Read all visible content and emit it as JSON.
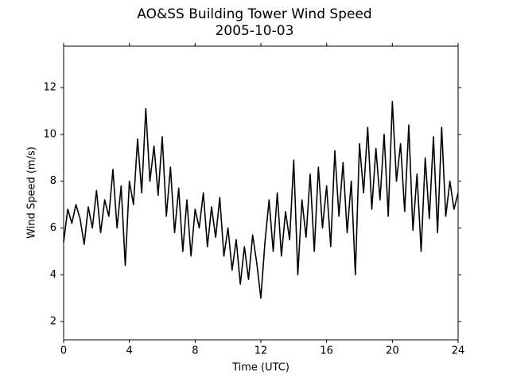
{
  "chart_data": {
    "type": "line",
    "title": "AO&SS Building Tower Wind Speed",
    "subtitle": "2005-10-03",
    "xlabel": "Time (UTC)",
    "ylabel": "Wind Speed (m/s)",
    "xlim": [
      0,
      24
    ],
    "xticks": [
      0,
      4,
      8,
      12,
      16,
      20,
      24
    ],
    "ylim": [
      1.22,
      13.77
    ],
    "yticks": [
      2,
      4,
      6,
      8,
      10,
      12
    ],
    "grid": false,
    "x": [
      0,
      0.25,
      0.5,
      0.75,
      1,
      1.25,
      1.5,
      1.75,
      2,
      2.25,
      2.5,
      2.75,
      3,
      3.25,
      3.5,
      3.75,
      4,
      4.25,
      4.5,
      4.75,
      5,
      5.25,
      5.5,
      5.75,
      6,
      6.25,
      6.5,
      6.75,
      7,
      7.25,
      7.5,
      7.75,
      8,
      8.25,
      8.5,
      8.75,
      9,
      9.25,
      9.5,
      9.75,
      10,
      10.25,
      10.5,
      10.75,
      11,
      11.25,
      11.5,
      11.75,
      12,
      12.25,
      12.5,
      12.75,
      13,
      13.25,
      13.5,
      13.75,
      14,
      14.25,
      14.5,
      14.75,
      15,
      15.25,
      15.5,
      15.75,
      16,
      16.25,
      16.5,
      16.75,
      17,
      17.25,
      17.5,
      17.75,
      18,
      18.25,
      18.5,
      18.75,
      19,
      19.25,
      19.5,
      19.75,
      20,
      20.25,
      20.5,
      20.75,
      21,
      21.25,
      21.5,
      21.75,
      22,
      22.25,
      22.5,
      22.75,
      23,
      23.25,
      23.5,
      23.75,
      24
    ],
    "series": [
      {
        "name": "Wind Speed",
        "color": "#000000",
        "values": [
          5.4,
          6.8,
          6.2,
          7.0,
          6.4,
          5.3,
          6.9,
          6.0,
          7.6,
          5.8,
          7.2,
          6.5,
          8.5,
          6.0,
          7.8,
          4.4,
          8.0,
          7.0,
          9.8,
          7.5,
          11.1,
          8.0,
          9.5,
          7.4,
          9.9,
          6.5,
          8.6,
          5.8,
          7.7,
          5.0,
          7.2,
          4.8,
          6.8,
          6.0,
          7.5,
          5.2,
          6.9,
          5.6,
          7.3,
          4.8,
          6.0,
          4.2,
          5.5,
          3.6,
          5.2,
          3.8,
          5.7,
          4.5,
          3.0,
          5.4,
          7.2,
          5.0,
          7.5,
          4.8,
          6.7,
          5.5,
          8.9,
          4.0,
          7.2,
          5.6,
          8.3,
          5.0,
          8.6,
          6.0,
          7.8,
          5.2,
          9.3,
          6.5,
          8.8,
          5.8,
          8.0,
          4.0,
          9.6,
          7.5,
          10.3,
          6.8,
          9.4,
          7.2,
          10.0,
          6.5,
          11.4,
          8.0,
          9.6,
          6.7,
          10.4,
          5.9,
          8.3,
          5.0,
          9.0,
          6.4,
          9.9,
          5.8,
          10.3,
          6.5,
          8.0,
          6.8,
          7.5
        ]
      }
    ]
  }
}
